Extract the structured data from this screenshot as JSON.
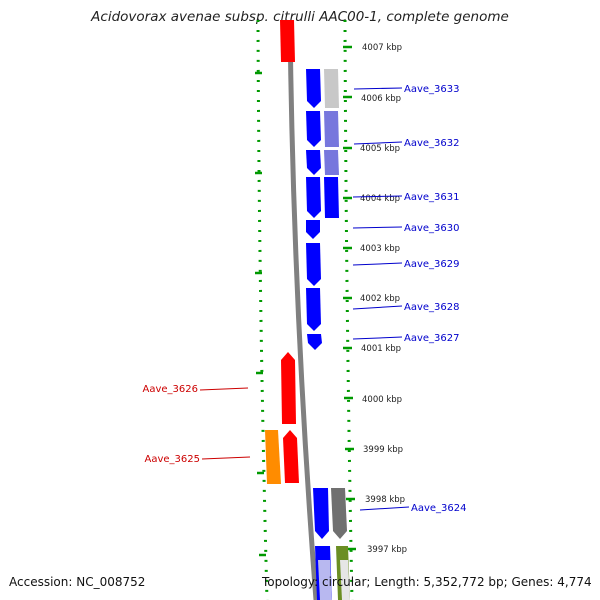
{
  "title": "Acidovorax avenae subsp. citrulli AAC00-1, complete genome",
  "footer": {
    "accession": "Accession: NC_008752",
    "topology": "Topology: circular; Length: 5,352,772 bp; Genes: 4,774"
  },
  "ticks": [
    "4007 kbp",
    "4006 kbp",
    "4005 kbp",
    "4004 kbp",
    "4003 kbp",
    "4002 kbp",
    "4001 kbp",
    "4000 kbp",
    "3999 kbp",
    "3998 kbp",
    "3997 kbp"
  ],
  "gene_labels": {
    "aave_3633": "Aave_3633",
    "aave_3632": "Aave_3632",
    "aave_3631": "Aave_3631",
    "aave_3630": "Aave_3630",
    "aave_3629": "Aave_3629",
    "aave_3628": "Aave_3628",
    "aave_3627": "Aave_3627",
    "aave_3626": "Aave_3626",
    "aave_3625": "Aave_3625",
    "aave_3624": "Aave_3624"
  },
  "colors": {
    "forward_strand": "#ff0000",
    "reverse_strand": "#0000ff",
    "backbone": "#808080",
    "tick_green": "#009900",
    "label_blue": "#0000cc",
    "label_red": "#cc0000",
    "orange_feature": "#ff8c00",
    "lavender_feature": "#7777dd",
    "gray_feature": "#c8c8c8",
    "dark_gray_feature": "#707070",
    "olive_feature": "#6b8e23"
  }
}
